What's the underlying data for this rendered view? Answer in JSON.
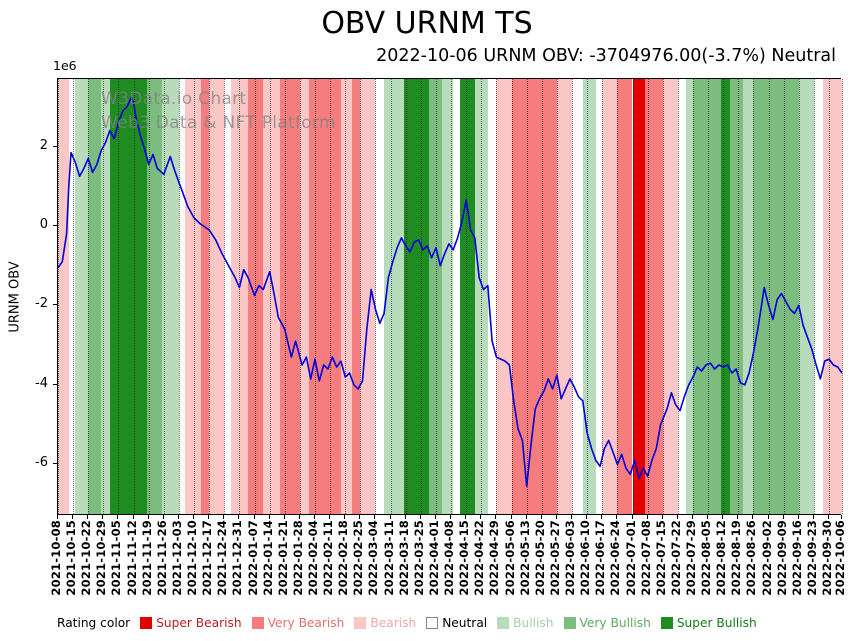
{
  "title": "OBV URNM TS",
  "subtitle": "2022-10-06 URNM OBV: -3704976.00(-3.7%) Neutral",
  "watermark": {
    "line1": "W3Data.io Chart",
    "line2": "Web3 Data & NFT Platform"
  },
  "legend": {
    "label": "Rating color",
    "items": [
      {
        "label": "Super Bearish",
        "swatch": "#e50000",
        "text_color": "#b22222"
      },
      {
        "label": "Very Bearish",
        "swatch": "#f57d7d",
        "text_color": "#e07070"
      },
      {
        "label": "Bearish",
        "swatch": "#fbc6c6",
        "text_color": "#f0a8a8"
      },
      {
        "label": "Neutral",
        "swatch": "#ffffff",
        "text_color": "#000000"
      },
      {
        "label": "Bullish",
        "swatch": "#b8dcba",
        "text_color": "#a2cfa4"
      },
      {
        "label": "Very Bullish",
        "swatch": "#7cbd7f",
        "text_color": "#5ea861"
      },
      {
        "label": "Super Bullish",
        "swatch": "#1e8c21",
        "text_color": "#157a18"
      }
    ]
  },
  "chart_data": {
    "type": "line",
    "title": "OBV URNM TS",
    "xlabel": "",
    "ylabel": "URNM OBV",
    "y_offset_label": "1e6",
    "ylim": [
      -7.3,
      3.7
    ],
    "yticks": [
      2,
      0,
      -2,
      -4,
      -6
    ],
    "grid": "vertical-dotted",
    "line_color": "#0000dd",
    "x_total_days": 363,
    "x_tick_labels": [
      "2021-10-08",
      "2021-10-15",
      "2021-10-22",
      "2021-10-29",
      "2021-11-05",
      "2021-11-12",
      "2021-11-19",
      "2021-11-26",
      "2021-12-03",
      "2021-12-10",
      "2021-12-17",
      "2021-12-24",
      "2021-12-31",
      "2022-01-07",
      "2022-01-14",
      "2022-01-21",
      "2022-01-28",
      "2022-02-04",
      "2022-02-11",
      "2022-02-18",
      "2022-02-25",
      "2022-03-04",
      "2022-03-11",
      "2022-03-18",
      "2022-03-25",
      "2022-04-01",
      "2022-04-08",
      "2022-04-15",
      "2022-04-22",
      "2022-04-29",
      "2022-05-06",
      "2022-05-13",
      "2022-05-20",
      "2022-05-27",
      "2022-06-03",
      "2022-06-10",
      "2022-06-17",
      "2022-06-24",
      "2022-07-01",
      "2022-07-08",
      "2022-07-15",
      "2022-07-22",
      "2022-07-29",
      "2022-08-05",
      "2022-08-12",
      "2022-08-19",
      "2022-08-26",
      "2022-09-02",
      "2022-09-09",
      "2022-09-16",
      "2022-09-23",
      "2022-09-30",
      "2022-10-06"
    ],
    "rating_colors": {
      "Super Bearish": "#e50000",
      "Very Bearish": "#f57d7d",
      "Bearish": "#fbc6c6",
      "Neutral": "#ffffff",
      "Bullish": "#b8dcba",
      "Very Bullish": "#7cbd7f",
      "Super Bullish": "#1e8c21"
    },
    "bands": [
      {
        "start_day": 0,
        "end_day": 5,
        "rating": "Bearish"
      },
      {
        "start_day": 5,
        "end_day": 8,
        "rating": "Neutral"
      },
      {
        "start_day": 8,
        "end_day": 14,
        "rating": "Bullish"
      },
      {
        "start_day": 14,
        "end_day": 20,
        "rating": "Very Bullish"
      },
      {
        "start_day": 20,
        "end_day": 24,
        "rating": "Bullish"
      },
      {
        "start_day": 24,
        "end_day": 41,
        "rating": "Super Bullish"
      },
      {
        "start_day": 41,
        "end_day": 48,
        "rating": "Very Bullish"
      },
      {
        "start_day": 48,
        "end_day": 56,
        "rating": "Bullish"
      },
      {
        "start_day": 56,
        "end_day": 59,
        "rating": "Neutral"
      },
      {
        "start_day": 59,
        "end_day": 66,
        "rating": "Bearish"
      },
      {
        "start_day": 66,
        "end_day": 70,
        "rating": "Very Bearish"
      },
      {
        "start_day": 70,
        "end_day": 77,
        "rating": "Bearish"
      },
      {
        "start_day": 77,
        "end_day": 80,
        "rating": "Neutral"
      },
      {
        "start_day": 80,
        "end_day": 88,
        "rating": "Bearish"
      },
      {
        "start_day": 88,
        "end_day": 95,
        "rating": "Very Bearish"
      },
      {
        "start_day": 95,
        "end_day": 103,
        "rating": "Bearish"
      },
      {
        "start_day": 103,
        "end_day": 112,
        "rating": "Very Bearish"
      },
      {
        "start_day": 112,
        "end_day": 116,
        "rating": "Bearish"
      },
      {
        "start_day": 116,
        "end_day": 131,
        "rating": "Very Bearish"
      },
      {
        "start_day": 131,
        "end_day": 136,
        "rating": "Bearish"
      },
      {
        "start_day": 136,
        "end_day": 140,
        "rating": "Very Bearish"
      },
      {
        "start_day": 140,
        "end_day": 147,
        "rating": "Bearish"
      },
      {
        "start_day": 147,
        "end_day": 151,
        "rating": "Neutral"
      },
      {
        "start_day": 151,
        "end_day": 160,
        "rating": "Bullish"
      },
      {
        "start_day": 160,
        "end_day": 172,
        "rating": "Super Bullish"
      },
      {
        "start_day": 172,
        "end_day": 178,
        "rating": "Very Bullish"
      },
      {
        "start_day": 178,
        "end_day": 183,
        "rating": "Bullish"
      },
      {
        "start_day": 183,
        "end_day": 186,
        "rating": "Neutral"
      },
      {
        "start_day": 186,
        "end_day": 193,
        "rating": "Super Bullish"
      },
      {
        "start_day": 193,
        "end_day": 199,
        "rating": "Bullish"
      },
      {
        "start_day": 199,
        "end_day": 203,
        "rating": "Neutral"
      },
      {
        "start_day": 203,
        "end_day": 210,
        "rating": "Bearish"
      },
      {
        "start_day": 210,
        "end_day": 231,
        "rating": "Very Bearish"
      },
      {
        "start_day": 231,
        "end_day": 238,
        "rating": "Bearish"
      },
      {
        "start_day": 238,
        "end_day": 243,
        "rating": "Neutral"
      },
      {
        "start_day": 243,
        "end_day": 249,
        "rating": "Bullish"
      },
      {
        "start_day": 249,
        "end_day": 252,
        "rating": "Neutral"
      },
      {
        "start_day": 252,
        "end_day": 259,
        "rating": "Bearish"
      },
      {
        "start_day": 259,
        "end_day": 266,
        "rating": "Very Bearish"
      },
      {
        "start_day": 266,
        "end_day": 272,
        "rating": "Super Bearish"
      },
      {
        "start_day": 272,
        "end_day": 280,
        "rating": "Very Bearish"
      },
      {
        "start_day": 280,
        "end_day": 287,
        "rating": "Bearish"
      },
      {
        "start_day": 287,
        "end_day": 291,
        "rating": "Neutral"
      },
      {
        "start_day": 291,
        "end_day": 294,
        "rating": "Bullish"
      },
      {
        "start_day": 294,
        "end_day": 307,
        "rating": "Very Bullish"
      },
      {
        "start_day": 307,
        "end_day": 311,
        "rating": "Super Bullish"
      },
      {
        "start_day": 311,
        "end_day": 317,
        "rating": "Very Bullish"
      },
      {
        "start_day": 317,
        "end_day": 322,
        "rating": "Bullish"
      },
      {
        "start_day": 322,
        "end_day": 343,
        "rating": "Very Bullish"
      },
      {
        "start_day": 343,
        "end_day": 350,
        "rating": "Bullish"
      },
      {
        "start_day": 350,
        "end_day": 354,
        "rating": "Neutral"
      },
      {
        "start_day": 354,
        "end_day": 363,
        "rating": "Bearish"
      }
    ],
    "series": [
      {
        "name": "URNM OBV",
        "units": "1e6",
        "points": [
          [
            0,
            -1.05
          ],
          [
            2,
            -0.9
          ],
          [
            4,
            -0.2
          ],
          [
            5,
            1.0
          ],
          [
            6,
            1.85
          ],
          [
            8,
            1.6
          ],
          [
            10,
            1.25
          ],
          [
            12,
            1.45
          ],
          [
            14,
            1.7
          ],
          [
            16,
            1.35
          ],
          [
            18,
            1.55
          ],
          [
            20,
            1.9
          ],
          [
            22,
            2.1
          ],
          [
            24,
            2.4
          ],
          [
            26,
            2.2
          ],
          [
            28,
            2.6
          ],
          [
            30,
            2.9
          ],
          [
            32,
            3.0
          ],
          [
            34,
            3.25
          ],
          [
            35,
            3.1
          ],
          [
            36,
            2.75
          ],
          [
            38,
            2.3
          ],
          [
            40,
            1.95
          ],
          [
            42,
            1.55
          ],
          [
            44,
            1.8
          ],
          [
            46,
            1.45
          ],
          [
            49,
            1.3
          ],
          [
            52,
            1.75
          ],
          [
            54,
            1.4
          ],
          [
            56,
            1.1
          ],
          [
            58,
            0.8
          ],
          [
            60,
            0.5
          ],
          [
            63,
            0.2
          ],
          [
            66,
            0.05
          ],
          [
            70,
            -0.1
          ],
          [
            73,
            -0.35
          ],
          [
            76,
            -0.7
          ],
          [
            79,
            -1.0
          ],
          [
            82,
            -1.3
          ],
          [
            84,
            -1.55
          ],
          [
            86,
            -1.1
          ],
          [
            88,
            -1.3
          ],
          [
            91,
            -1.75
          ],
          [
            93,
            -1.5
          ],
          [
            95,
            -1.6
          ],
          [
            98,
            -1.15
          ],
          [
            100,
            -1.7
          ],
          [
            102,
            -2.3
          ],
          [
            105,
            -2.6
          ],
          [
            108,
            -3.3
          ],
          [
            110,
            -2.9
          ],
          [
            113,
            -3.5
          ],
          [
            115,
            -3.3
          ],
          [
            117,
            -3.85
          ],
          [
            119,
            -3.35
          ],
          [
            121,
            -3.9
          ],
          [
            123,
            -3.5
          ],
          [
            125,
            -3.6
          ],
          [
            127,
            -3.3
          ],
          [
            129,
            -3.55
          ],
          [
            131,
            -3.4
          ],
          [
            133,
            -3.8
          ],
          [
            135,
            -3.7
          ],
          [
            137,
            -4.0
          ],
          [
            139,
            -4.1
          ],
          [
            141,
            -3.9
          ],
          [
            143,
            -2.6
          ],
          [
            145,
            -1.6
          ],
          [
            147,
            -2.1
          ],
          [
            149,
            -2.45
          ],
          [
            151,
            -2.2
          ],
          [
            153,
            -1.3
          ],
          [
            155,
            -0.9
          ],
          [
            157,
            -0.55
          ],
          [
            159,
            -0.3
          ],
          [
            161,
            -0.5
          ],
          [
            163,
            -0.65
          ],
          [
            165,
            -0.4
          ],
          [
            167,
            -0.35
          ],
          [
            169,
            -0.6
          ],
          [
            171,
            -0.5
          ],
          [
            173,
            -0.8
          ],
          [
            175,
            -0.55
          ],
          [
            177,
            -1.0
          ],
          [
            179,
            -0.7
          ],
          [
            181,
            -0.45
          ],
          [
            183,
            -0.6
          ],
          [
            185,
            -0.3
          ],
          [
            187,
            0.1
          ],
          [
            189,
            0.65
          ],
          [
            190,
            0.3
          ],
          [
            191,
            -0.1
          ],
          [
            193,
            -0.3
          ],
          [
            195,
            -1.3
          ],
          [
            197,
            -1.6
          ],
          [
            199,
            -1.5
          ],
          [
            201,
            -2.9
          ],
          [
            203,
            -3.3
          ],
          [
            205,
            -3.35
          ],
          [
            207,
            -3.4
          ],
          [
            209,
            -3.5
          ],
          [
            211,
            -4.4
          ],
          [
            213,
            -5.1
          ],
          [
            215,
            -5.4
          ],
          [
            217,
            -6.55
          ],
          [
            219,
            -5.5
          ],
          [
            221,
            -4.6
          ],
          [
            223,
            -4.35
          ],
          [
            225,
            -4.15
          ],
          [
            227,
            -3.85
          ],
          [
            229,
            -4.1
          ],
          [
            231,
            -3.75
          ],
          [
            233,
            -4.35
          ],
          [
            235,
            -4.1
          ],
          [
            237,
            -3.85
          ],
          [
            239,
            -4.05
          ],
          [
            241,
            -4.3
          ],
          [
            243,
            -4.4
          ],
          [
            245,
            -5.2
          ],
          [
            247,
            -5.6
          ],
          [
            249,
            -5.9
          ],
          [
            251,
            -6.05
          ],
          [
            253,
            -5.6
          ],
          [
            255,
            -5.4
          ],
          [
            257,
            -5.7
          ],
          [
            259,
            -6.0
          ],
          [
            261,
            -5.75
          ],
          [
            263,
            -6.1
          ],
          [
            265,
            -6.25
          ],
          [
            267,
            -5.9
          ],
          [
            269,
            -6.35
          ],
          [
            271,
            -6.1
          ],
          [
            273,
            -6.3
          ],
          [
            275,
            -5.9
          ],
          [
            277,
            -5.6
          ],
          [
            279,
            -5.0
          ],
          [
            282,
            -4.6
          ],
          [
            284,
            -4.2
          ],
          [
            286,
            -4.5
          ],
          [
            288,
            -4.65
          ],
          [
            290,
            -4.3
          ],
          [
            292,
            -4.0
          ],
          [
            294,
            -3.8
          ],
          [
            296,
            -3.55
          ],
          [
            298,
            -3.65
          ],
          [
            300,
            -3.5
          ],
          [
            302,
            -3.45
          ],
          [
            304,
            -3.6
          ],
          [
            306,
            -3.5
          ],
          [
            308,
            -3.55
          ],
          [
            310,
            -3.5
          ],
          [
            312,
            -3.7
          ],
          [
            314,
            -3.6
          ],
          [
            316,
            -3.95
          ],
          [
            318,
            -4.0
          ],
          [
            320,
            -3.7
          ],
          [
            322,
            -3.2
          ],
          [
            324,
            -2.6
          ],
          [
            326,
            -1.9
          ],
          [
            327,
            -1.55
          ],
          [
            329,
            -2.0
          ],
          [
            331,
            -2.35
          ],
          [
            333,
            -1.85
          ],
          [
            335,
            -1.7
          ],
          [
            337,
            -1.9
          ],
          [
            339,
            -2.1
          ],
          [
            341,
            -2.2
          ],
          [
            343,
            -2.0
          ],
          [
            345,
            -2.5
          ],
          [
            347,
            -2.8
          ],
          [
            349,
            -3.1
          ],
          [
            351,
            -3.5
          ],
          [
            353,
            -3.85
          ],
          [
            355,
            -3.4
          ],
          [
            357,
            -3.35
          ],
          [
            359,
            -3.5
          ],
          [
            361,
            -3.55
          ],
          [
            363,
            -3.7
          ]
        ]
      }
    ]
  }
}
